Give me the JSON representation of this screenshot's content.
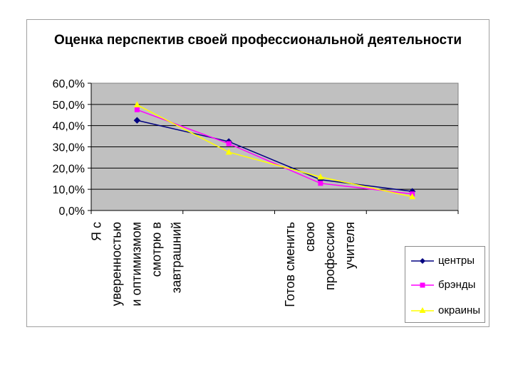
{
  "chart_data": {
    "type": "line",
    "title": "Оценка перспектив своей профессиональной деятельности",
    "xlabel": "",
    "ylabel": "",
    "ylim": [
      0,
      60
    ],
    "yticks": [
      "0,0%",
      "10,0%",
      "20,0%",
      "30,0%",
      "40,0%",
      "50,0%",
      "60,0%"
    ],
    "categories": [
      "Я с уверенностью и оптимизмом смотрю в завтрашний",
      "",
      "Готов сменить свою профессию учителя",
      ""
    ],
    "category_lines": [
      [
        "Я с",
        "уверенностью",
        "и оптимизмом",
        "смотрю в",
        "завтрашний"
      ],
      [],
      [
        "Готов сменить",
        "свою",
        "профессию",
        "учителя"
      ],
      []
    ],
    "series": [
      {
        "name": "центры",
        "values": [
          42.5,
          32.5,
          14.5,
          9.0
        ],
        "color": "#000080",
        "marker": "diamond"
      },
      {
        "name": "брэнды",
        "values": [
          47.5,
          31.5,
          12.8,
          7.8
        ],
        "color": "#ff00ff",
        "marker": "square"
      },
      {
        "name": "окраины",
        "values": [
          49.8,
          27.5,
          15.8,
          6.5
        ],
        "color": "#ffff00",
        "marker": "triangle"
      }
    ],
    "grid": true,
    "legend_position": "bottom-right",
    "plot_background": "#c0c0c0"
  }
}
